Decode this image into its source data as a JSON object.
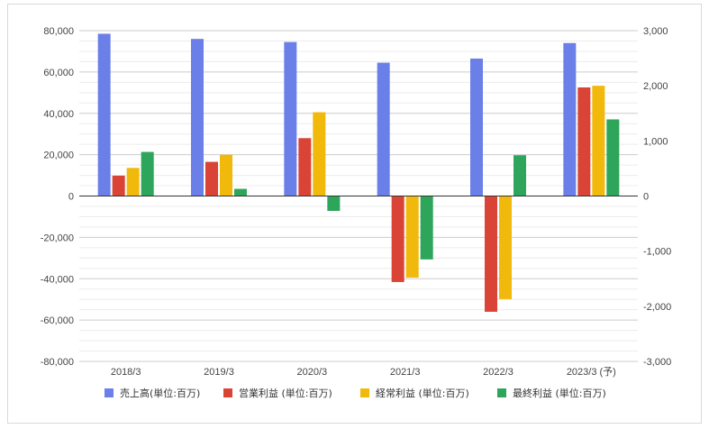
{
  "chart_data": {
    "type": "bar",
    "categories": [
      "2018/3",
      "2019/3",
      "2020/3",
      "2021/3",
      "2022/3",
      "2023/3 (予)"
    ],
    "series": [
      {
        "name": "売上高(単位:百万)",
        "axis": "left",
        "color": "#6b7fe8",
        "values": [
          78500,
          76000,
          74500,
          64500,
          66500,
          74000
        ]
      },
      {
        "name": "営業利益 (単位:百万)",
        "axis": "right",
        "color": "#d94436",
        "values": [
          370,
          620,
          1050,
          -1560,
          -2100,
          1970
        ]
      },
      {
        "name": "経常利益 (単位:百万)",
        "axis": "right",
        "color": "#f0b90b",
        "values": [
          510,
          750,
          1520,
          -1480,
          -1870,
          2000
        ]
      },
      {
        "name": "最終利益 (単位:百万)",
        "axis": "right",
        "color": "#2da55a",
        "values": [
          800,
          130,
          -270,
          -1150,
          740,
          1390
        ]
      }
    ],
    "y_left": {
      "min": -80000,
      "max": 80000,
      "ticks": [
        "80,000",
        "60,000",
        "40,000",
        "20,000",
        "0",
        "-20,000",
        "-40,000",
        "-60,000",
        "-80,000"
      ]
    },
    "y_right": {
      "min": -3000,
      "max": 3000,
      "ticks": [
        "3,000",
        "2,000",
        "1,000",
        "0",
        "-1,000",
        "-2,000",
        "-3,000"
      ]
    },
    "grid": true,
    "legend_position": "bottom"
  }
}
